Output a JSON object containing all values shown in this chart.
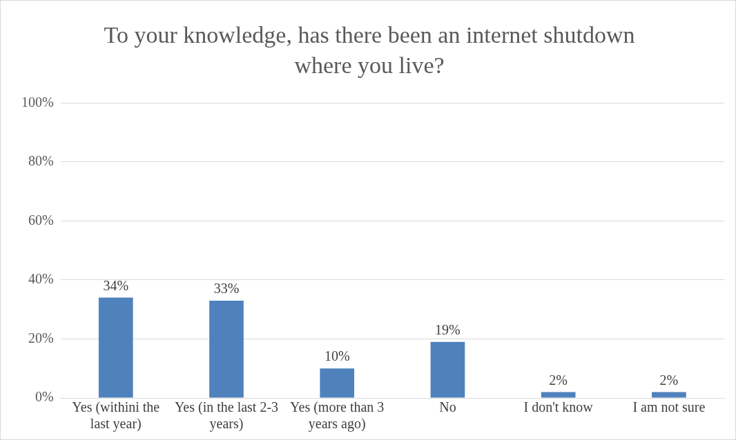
{
  "chart_data": {
    "type": "bar",
    "title": "To your knowledge, has there been an internet shutdown where you live?",
    "categories": [
      "Yes (withini the last year)",
      "Yes (in the last 2-3 years)",
      "Yes (more than 3 years ago)",
      "No",
      "I don't know",
      "I am not sure"
    ],
    "values": [
      34,
      33,
      10,
      19,
      2,
      2
    ],
    "value_labels": [
      "34%",
      "33%",
      "10%",
      "19%",
      "2%",
      "2%"
    ],
    "color": "#4f81bd",
    "ylim": [
      0,
      100
    ],
    "yticks": [
      {
        "value": 0,
        "label": "0%"
      },
      {
        "value": 20,
        "label": "20%"
      },
      {
        "value": 40,
        "label": "40%"
      },
      {
        "value": 60,
        "label": "60%"
      },
      {
        "value": 80,
        "label": "80%"
      },
      {
        "value": 100,
        "label": "100%"
      }
    ],
    "grid": "y",
    "legend": false
  }
}
